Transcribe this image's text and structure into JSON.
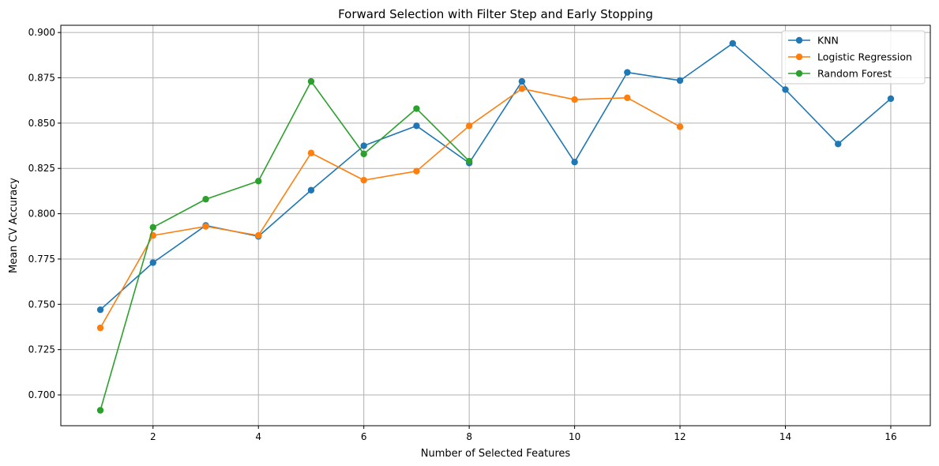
{
  "chart_data": {
    "type": "line",
    "title": "Forward Selection with Filter Step and Early Stopping",
    "xlabel": "Number of Selected Features",
    "ylabel": "Mean CV Accuracy",
    "xlim": [
      0.25,
      16.75
    ],
    "ylim": [
      0.683,
      0.904
    ],
    "xticks": [
      2,
      4,
      6,
      8,
      10,
      12,
      14,
      16
    ],
    "yticks": [
      0.7,
      0.725,
      0.75,
      0.775,
      0.8,
      0.825,
      0.85,
      0.875,
      0.9
    ],
    "xtick_labels": [
      "2",
      "4",
      "6",
      "8",
      "10",
      "12",
      "14",
      "16"
    ],
    "ytick_labels": [
      "0.700",
      "0.725",
      "0.750",
      "0.775",
      "0.800",
      "0.825",
      "0.850",
      "0.875",
      "0.900"
    ],
    "grid": true,
    "legend_position": "top-right",
    "series": [
      {
        "name": "KNN",
        "color": "#1f77b4",
        "x": [
          1,
          2,
          3,
          4,
          5,
          6,
          7,
          8,
          9,
          10,
          11,
          12,
          13,
          14,
          15,
          16
        ],
        "y": [
          0.747,
          0.773,
          0.7935,
          0.7875,
          0.813,
          0.8375,
          0.8485,
          0.828,
          0.873,
          0.8285,
          0.878,
          0.8735,
          0.894,
          0.8685,
          0.8385,
          0.8635
        ]
      },
      {
        "name": "Logistic Regression",
        "color": "#ff7f0e",
        "x": [
          1,
          2,
          3,
          4,
          5,
          6,
          7,
          8,
          9,
          10,
          11,
          12
        ],
        "y": [
          0.737,
          0.788,
          0.793,
          0.788,
          0.8335,
          0.8185,
          0.8235,
          0.8485,
          0.869,
          0.863,
          0.864,
          0.848
        ]
      },
      {
        "name": "Random Forest",
        "color": "#2ca02c",
        "x": [
          1,
          2,
          3,
          4,
          5,
          6,
          7,
          8
        ],
        "y": [
          0.6915,
          0.7925,
          0.808,
          0.818,
          0.873,
          0.833,
          0.858,
          0.829
        ]
      }
    ]
  }
}
